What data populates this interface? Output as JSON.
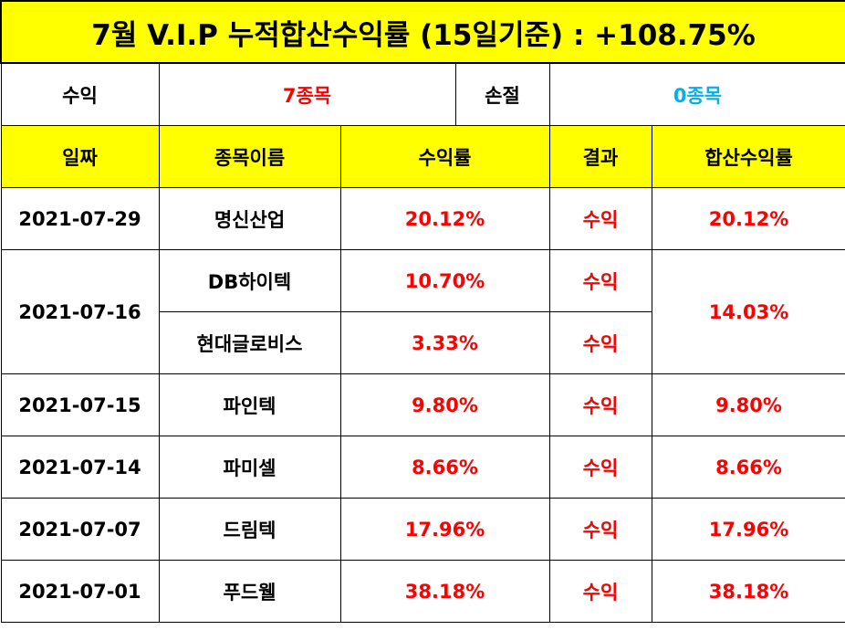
{
  "title": "7월 V.I.P 누적합산수익률 (15일기준) : +108.75%",
  "summary": {
    "profit_label": "수익",
    "profit_value": "7종목",
    "loss_label": "손절",
    "loss_value": "0종목"
  },
  "headers": {
    "date": "일짜",
    "name": "종목이름",
    "return": "수익률",
    "result": "결과",
    "combined": "합산수익률"
  },
  "rows": [
    {
      "date": "2021-07-29",
      "name": "명신산업",
      "return": "20.12%",
      "result": "수익",
      "combined": "20.12%"
    },
    {
      "date": "2021-07-16",
      "name": "DB하이텍",
      "return": "10.70%",
      "result": "수익",
      "combined": "14.03%"
    },
    {
      "name": "현대글로비스",
      "return": "3.33%",
      "result": "수익"
    },
    {
      "date": "2021-07-15",
      "name": "파인텍",
      "return": "9.80%",
      "result": "수익",
      "combined": "9.80%"
    },
    {
      "date": "2021-07-14",
      "name": "파미셀",
      "return": "8.66%",
      "result": "수익",
      "combined": "8.66%"
    },
    {
      "date": "2021-07-07",
      "name": "드림텍",
      "return": "17.96%",
      "result": "수익",
      "combined": "17.96%"
    },
    {
      "date": "2021-07-01",
      "name": "푸드웰",
      "return": "38.18%",
      "result": "수익",
      "combined": "38.18%"
    }
  ],
  "colors": {
    "header_bg": "#ffff00",
    "profit": "#ff0000",
    "loss": "#00b0f0"
  }
}
